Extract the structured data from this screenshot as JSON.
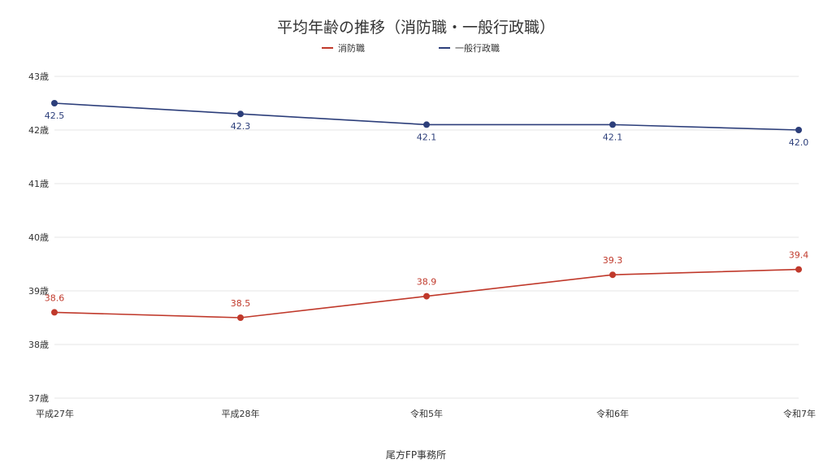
{
  "chart_data": {
    "type": "line",
    "title": "平均年齢の推移（消防職・一般行政職）",
    "xlabel": "",
    "ylabel": "",
    "categories": [
      "平成27年",
      "平成28年",
      "令和5年",
      "令和6年",
      "令和7年"
    ],
    "ylim": [
      37,
      43
    ],
    "y_ticks": [
      37,
      38,
      39,
      40,
      41,
      42,
      43
    ],
    "y_tick_labels": [
      "37歳",
      "38歳",
      "39歳",
      "40歳",
      "41歳",
      "42歳",
      "43歳"
    ],
    "grid": true,
    "legend_position": "top-center",
    "series": [
      {
        "name": "消防職",
        "color": "#c0392b",
        "values": [
          38.6,
          38.5,
          38.9,
          39.3,
          39.4
        ],
        "labels": [
          "38.6",
          "38.5",
          "38.9",
          "39.3",
          "39.4"
        ]
      },
      {
        "name": "一般行政職",
        "color": "#2c3e7a",
        "values": [
          42.5,
          42.3,
          42.1,
          42.1,
          42.0
        ],
        "labels": [
          "42.5",
          "42.3",
          "42.1",
          "42.1",
          "42.0"
        ]
      }
    ]
  },
  "footer": {
    "source": "尾方FP事務所"
  }
}
